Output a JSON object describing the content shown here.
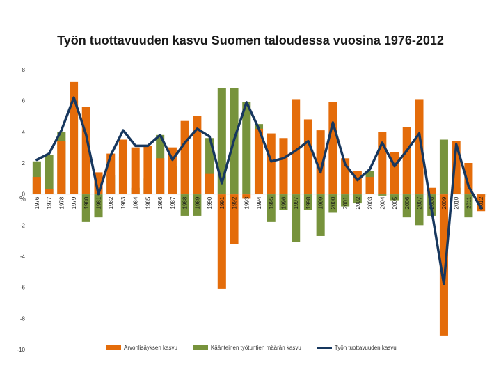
{
  "chart_data": {
    "type": "bar",
    "title": "Työn tuottavuuden kasvu Suomen taloudessa vuosina 1976-2012",
    "ylabel": "%",
    "xlabel": "",
    "ylim": [
      -10,
      8
    ],
    "yticks": [
      8,
      6,
      4,
      2,
      0,
      -2,
      -4,
      -6,
      -8,
      -10
    ],
    "grid": false,
    "legend_position": "bottom",
    "categories": [
      "1976",
      "1977",
      "1978",
      "1979",
      "1980",
      "1981",
      "1982",
      "1983",
      "1984",
      "1985",
      "1986",
      "1987",
      "1988",
      "1989",
      "1990",
      "1991",
      "1992",
      "1993",
      "1994",
      "1995",
      "1996",
      "1997",
      "1998",
      "1999",
      "2000",
      "2001",
      "2002",
      "2003",
      "2004",
      "2005",
      "2006",
      "2007",
      "2008",
      "2009",
      "2010",
      "2011",
      "2012"
    ],
    "series": [
      {
        "name": "Arvonlisäyksen kasvu",
        "kind": "bar",
        "color": "#e46c0a",
        "values": [
          1.1,
          0.3,
          3.4,
          7.2,
          5.6,
          1.4,
          2.6,
          3.5,
          3.0,
          3.1,
          2.3,
          3.0,
          4.7,
          5.0,
          1.3,
          -6.1,
          -3.2,
          -0.3,
          4.2,
          3.9,
          3.6,
          6.1,
          4.8,
          4.1,
          5.9,
          2.3,
          1.5,
          1.1,
          4.0,
          2.7,
          4.3,
          6.1,
          0.4,
          -9.1,
          3.4,
          2.0,
          -1.1
        ]
      },
      {
        "name": "Käänteinen työtuntien määrän kasvu",
        "kind": "bar",
        "color": "#77933c",
        "values": [
          2.1,
          2.5,
          4.0,
          6.0,
          -1.8,
          -1.5,
          1.2,
          2.4,
          0.4,
          1.0,
          3.8,
          1.8,
          -1.4,
          -1.4,
          3.6,
          6.8,
          6.8,
          5.9,
          4.5,
          -1.8,
          -1.0,
          -3.1,
          -1.0,
          -2.7,
          -1.2,
          -0.8,
          -0.6,
          1.5,
          -0.1,
          -0.4,
          -1.5,
          -2.0,
          -1.4,
          3.5,
          0.4,
          -1.5,
          -0.2
        ]
      },
      {
        "name": "Työn tuottavuuden kasvu",
        "kind": "line",
        "color": "#17375e",
        "values": [
          2.2,
          2.6,
          4.1,
          6.2,
          3.8,
          0.0,
          2.5,
          4.1,
          3.1,
          3.1,
          3.8,
          2.2,
          3.3,
          4.2,
          3.7,
          0.7,
          3.5,
          5.9,
          4.2,
          2.1,
          2.3,
          2.8,
          3.4,
          1.4,
          4.6,
          1.9,
          0.9,
          1.6,
          3.3,
          1.8,
          2.8,
          3.9,
          -1.0,
          -5.8,
          3.2,
          0.5,
          -0.9
        ]
      }
    ]
  }
}
